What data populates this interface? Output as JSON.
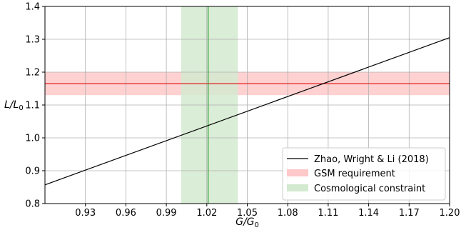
{
  "chart_data": {
    "type": "line",
    "xlabel": "G/G",
    "xlabel_sub": "0",
    "ylabel": "L/L",
    "ylabel_sub": "0",
    "xlim": [
      0.9,
      1.2
    ],
    "ylim": [
      0.8,
      1.4
    ],
    "xticks": [
      0.93,
      0.96,
      0.99,
      1.02,
      1.05,
      1.08,
      1.11,
      1.14,
      1.17,
      1.2
    ],
    "xtick_labels": [
      "0.93",
      "0.96",
      "0.99",
      "1.02",
      "1.05",
      "1.08",
      "1.11",
      "1.14",
      "1.17",
      "1.20"
    ],
    "yticks": [
      0.8,
      0.9,
      1.0,
      1.1,
      1.2,
      1.3,
      1.4
    ],
    "ytick_labels": [
      "0.8",
      "0.9",
      "1.0",
      "1.1",
      "1.2",
      "1.3",
      "1.4"
    ],
    "grid": true,
    "series": [
      {
        "name": "Zhao, Wright & Li (2018)",
        "kind": "line",
        "color": "#000000",
        "x": [
          0.9,
          1.2
        ],
        "y": [
          0.857,
          1.305
        ]
      }
    ],
    "bands": [
      {
        "name": "GSM requirement",
        "orientation": "horizontal",
        "from": 1.13,
        "to": 1.2,
        "center": 1.165,
        "fill": "#ffc9c9",
        "line_color": "#e02020"
      },
      {
        "name": "Cosmological constraint",
        "orientation": "vertical",
        "from": 1.001,
        "to": 1.043,
        "center": 1.021,
        "fill": "#d3ead0",
        "line_color": "#2ca02c"
      }
    ],
    "legend_position": "lower-right"
  }
}
